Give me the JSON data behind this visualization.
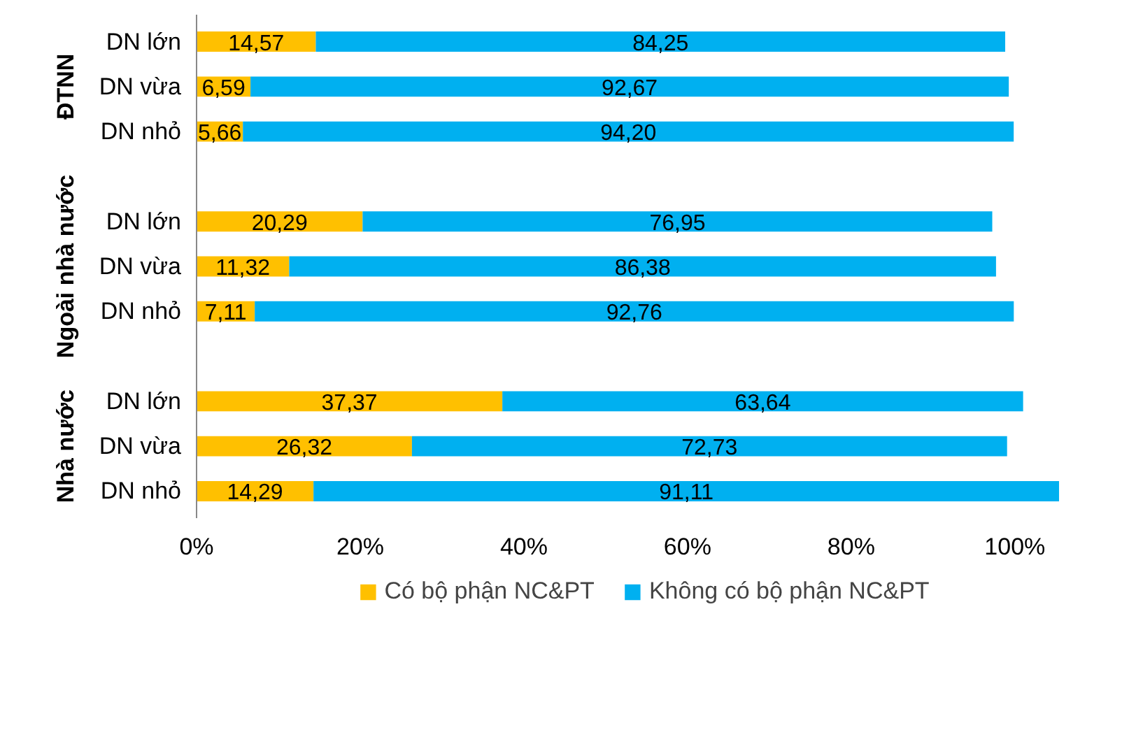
{
  "chart_data": {
    "type": "bar",
    "orientation": "horizontal",
    "stacked": true,
    "categories": [
      "DN lớn",
      "DN vừa",
      "DN nhỏ",
      null,
      "DN lớn",
      "DN vừa",
      "DN nhỏ",
      null,
      "DN lớn",
      "DN vừa",
      "DN nhỏ"
    ],
    "series": [
      {
        "name": "Có bộ phận NC&PT",
        "color": "#ffc000",
        "values": [
          14.57,
          6.59,
          5.66,
          null,
          20.29,
          11.32,
          7.11,
          null,
          37.37,
          26.32,
          14.29
        ],
        "value_labels": [
          "14,57",
          "6,59",
          "5,66",
          null,
          "20,29",
          "11,32",
          "7,11",
          null,
          "37,37",
          "26,32",
          "14,29"
        ]
      },
      {
        "name": "Không có bộ phận NC&PT",
        "color": "#00b0f0",
        "values": [
          84.25,
          92.67,
          94.2,
          null,
          76.95,
          86.38,
          92.76,
          null,
          63.64,
          72.73,
          91.11
        ],
        "value_labels": [
          "84,25",
          "92,67",
          "94,20",
          null,
          "76,95",
          "86,38",
          "92,76",
          null,
          "63,64",
          "72,73",
          "91,11"
        ]
      }
    ],
    "annotations": [
      "ĐTNN",
      "Ngoài nhà nước",
      "Nhà nước"
    ],
    "xlim": [
      0,
      106
    ],
    "xticks": [
      {
        "value": 0,
        "label": "0%"
      },
      {
        "value": 20,
        "label": "20%"
      },
      {
        "value": 40,
        "label": "40%"
      },
      {
        "value": 60,
        "label": "60%"
      },
      {
        "value": 80,
        "label": "80%"
      },
      {
        "value": 100,
        "label": "100%"
      }
    ],
    "grid": false,
    "legend": "bottom"
  }
}
